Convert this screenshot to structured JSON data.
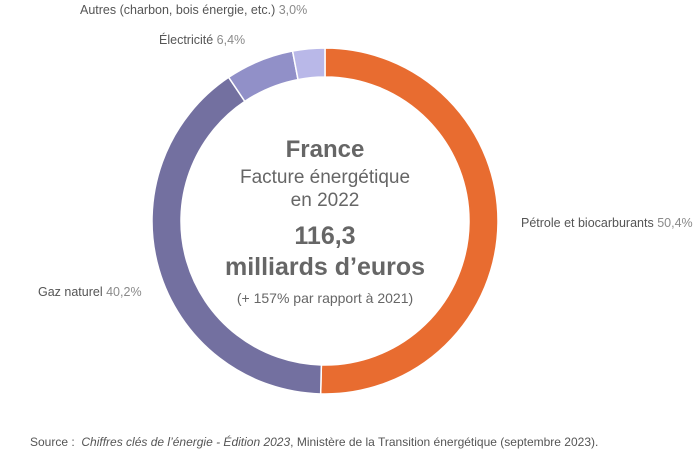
{
  "chart_data": {
    "type": "pie",
    "donut": true,
    "slices": [
      {
        "label": "Pétrole et biocarburants",
        "value": 50.4,
        "value_label": "50,4%",
        "color": "#E86C30"
      },
      {
        "label": "Gaz naturel",
        "value": 40.2,
        "value_label": "40,2%",
        "color": "#7370A0"
      },
      {
        "label": "Électricité",
        "value": 6.4,
        "value_label": "6,4%",
        "color": "#9190C8"
      },
      {
        "label": "Autres (charbon, bois énergie, etc.)",
        "value": 3.0,
        "value_label": "3,0%",
        "color": "#B9B8E8"
      }
    ],
    "center": {
      "title": "France",
      "subtitle1": "Facture énergétique",
      "subtitle2": "en 2022",
      "value1": "116,3",
      "value2": "milliards d’euros",
      "note": "(+ 157% par rapport à 2021)"
    },
    "source": {
      "prefix": "Source :",
      "italic": "Chiffres clés de l’énergie - Édition 2023",
      "rest": ", Ministère de la Transition énergétique (septembre 2023)."
    }
  }
}
